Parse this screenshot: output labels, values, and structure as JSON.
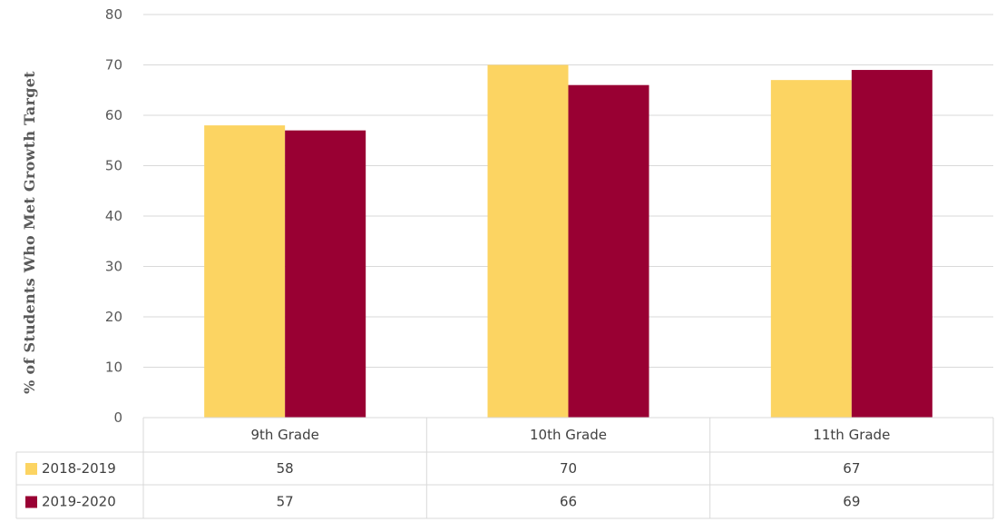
{
  "chart_data": {
    "type": "bar",
    "title": "",
    "xlabel": "",
    "ylabel": "% of Students Who Met Growth Target",
    "ylim": [
      0,
      80
    ],
    "yticks": [
      0,
      10,
      20,
      30,
      40,
      50,
      60,
      70,
      80
    ],
    "grid": true,
    "legend": "data-table-left",
    "categories": [
      "9th Grade",
      "10th Grade",
      "11th Grade"
    ],
    "series": [
      {
        "name": "2018-2019",
        "color": "#FCD462",
        "values": [
          58,
          70,
          67
        ]
      },
      {
        "name": "2019-2020",
        "color": "#990033",
        "values": [
          57,
          66,
          69
        ]
      }
    ]
  }
}
